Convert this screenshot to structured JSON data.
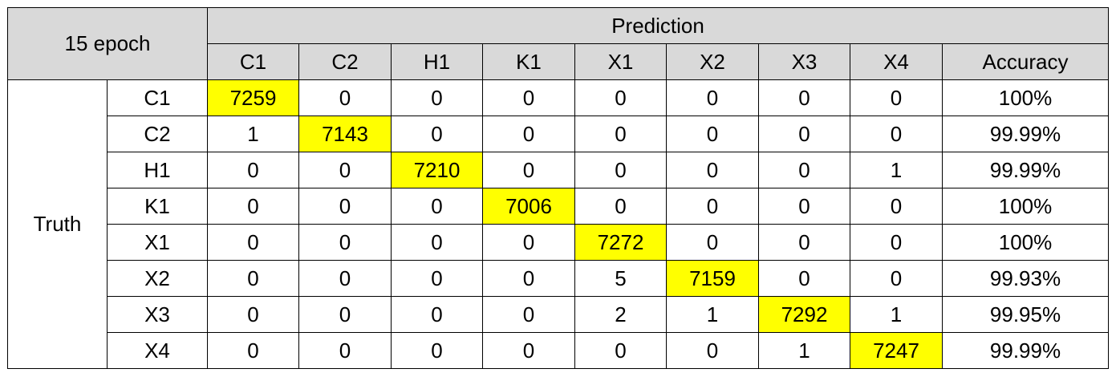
{
  "chart_data": {
    "type": "table",
    "title": "15  epoch",
    "column_group_label": "Prediction",
    "row_group_label": "Truth",
    "columns": [
      "C1",
      "C2",
      "H1",
      "K1",
      "X1",
      "X2",
      "X3",
      "X4"
    ],
    "accuracy_label": "Accuracy",
    "rows": [
      {
        "label": "C1",
        "values": [
          7259,
          0,
          0,
          0,
          0,
          0,
          0,
          0
        ],
        "accuracy": "100%"
      },
      {
        "label": "C2",
        "values": [
          1,
          7143,
          0,
          0,
          0,
          0,
          0,
          0
        ],
        "accuracy": "99.99%"
      },
      {
        "label": "H1",
        "values": [
          0,
          0,
          7210,
          0,
          0,
          0,
          0,
          1
        ],
        "accuracy": "99.99%"
      },
      {
        "label": "K1",
        "values": [
          0,
          0,
          0,
          7006,
          0,
          0,
          0,
          0
        ],
        "accuracy": "100%"
      },
      {
        "label": "X1",
        "values": [
          0,
          0,
          0,
          0,
          7272,
          0,
          0,
          0
        ],
        "accuracy": "100%"
      },
      {
        "label": "X2",
        "values": [
          0,
          0,
          0,
          0,
          5,
          7159,
          0,
          0
        ],
        "accuracy": "99.93%"
      },
      {
        "label": "X3",
        "values": [
          0,
          0,
          0,
          0,
          2,
          1,
          7292,
          1
        ],
        "accuracy": "99.95%"
      },
      {
        "label": "X4",
        "values": [
          0,
          0,
          0,
          0,
          0,
          0,
          1,
          7247
        ],
        "accuracy": "99.99%"
      }
    ],
    "colors": {
      "header_background": "#d9d9d9",
      "diagonal_highlight": "#ffff00",
      "border": "#000000"
    }
  }
}
